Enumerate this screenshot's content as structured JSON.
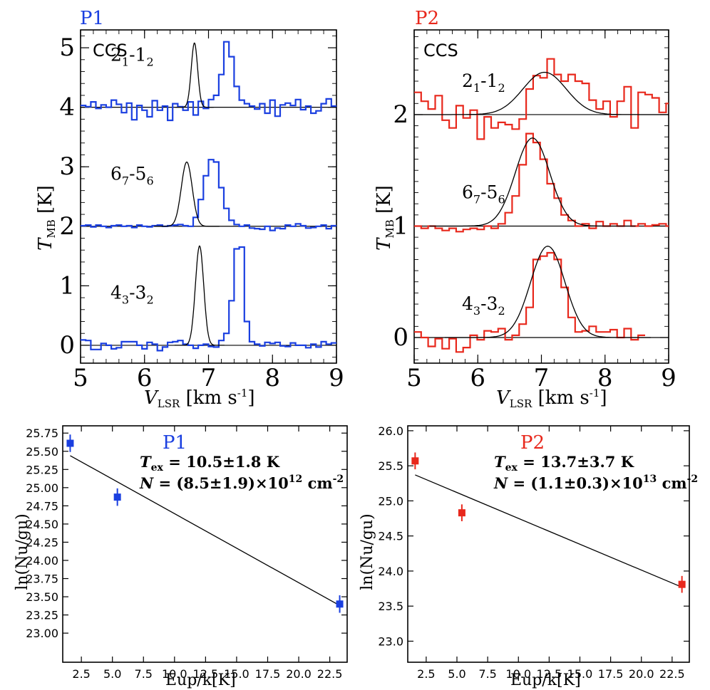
{
  "chart_data": [
    {
      "type": "line",
      "panel": "spectra",
      "title": "P1",
      "title_color": "#1a3fe0",
      "series_color": "#1a3fe0",
      "molecule": "CCS",
      "xlabel": "V_LSR [km s-1]",
      "ylabel": "T_MB [K]",
      "xlim": [
        5,
        9
      ],
      "ylim": [
        -0.3,
        5.3
      ],
      "x_ticks": [
        5,
        6,
        7,
        8,
        9
      ],
      "x_tick_labels": [
        "5",
        "6",
        "7",
        "8",
        "9"
      ],
      "y_ticks": [
        0,
        1,
        2,
        3,
        4,
        5
      ],
      "y_tick_labels": [
        "0",
        "1",
        "2",
        "3",
        "4",
        "5"
      ],
      "channel_width": 0.08,
      "transitions": [
        {
          "label": "2",
          "sub1": "1",
          "sep": "-1",
          "sub2": "2",
          "offset": 4,
          "amp": 1.08,
          "center": 6.78,
          "sigma": 0.05,
          "channels": [
            0.03,
            0.01,
            0.09,
            -0.02,
            0.04,
            0.0,
            0.12,
            0.05,
            -0.09,
            0.07,
            -0.21,
            0.03,
            -0.05,
            -0.16,
            0.11,
            -0.05,
            0.02,
            -0.22,
            0.06,
            0.01,
            -0.05,
            0.09,
            -0.13,
            0.1,
            -0.02,
            0.13,
            0.2,
            0.55,
            1.1,
            0.85,
            0.35,
            0.12,
            0.06,
            0.02,
            -0.03,
            0.06,
            -0.1,
            0.12,
            -0.15,
            0.04,
            0.07,
            0.03,
            0.13,
            -0.04,
            0.02,
            -0.1,
            -0.06,
            0.06,
            0.14,
            0.02,
            0.1,
            0.04,
            -0.03,
            0.15,
            0.06,
            0.02,
            -0.06,
            0.12,
            0.27,
            0.18,
            0.15,
            -0.02
          ]
        },
        {
          "label": "6",
          "sub1": "7",
          "sep": "-5",
          "sub2": "6",
          "offset": 2,
          "amp": 1.08,
          "center": 6.66,
          "sigma": 0.085,
          "channels": [
            0.01,
            0.02,
            -0.01,
            0.02,
            0.0,
            -0.02,
            0.01,
            0.02,
            0.0,
            0.01,
            -0.02,
            0.02,
            0.0,
            -0.01,
            0.01,
            0.02,
            0.0,
            0.01,
            0.02,
            0.03,
            0.01,
            0.0,
            0.15,
            0.45,
            0.85,
            1.12,
            1.08,
            0.65,
            0.3,
            0.1,
            0.03,
            0.0,
            0.02,
            -0.03,
            -0.04,
            -0.05,
            0.0,
            -0.07,
            -0.03,
            -0.04,
            0.02,
            0.0,
            0.04,
            0.01,
            -0.03,
            -0.02,
            0.0,
            0.02,
            -0.04,
            0.01,
            -0.03,
            -0.02,
            0.0,
            0.0,
            -0.02,
            0.01
          ]
        },
        {
          "label": "4",
          "sub1": "3",
          "sep": "-3",
          "sub2": "2",
          "offset": 0,
          "amp": 1.67,
          "center": 6.86,
          "sigma": 0.065,
          "channels": [
            0.09,
            0.08,
            -0.07,
            -0.07,
            0.03,
            0.0,
            -0.06,
            -0.04,
            0.06,
            0.06,
            0.06,
            0.0,
            -0.06,
            0.05,
            0.02,
            -0.09,
            -0.03,
            0.05,
            0.06,
            0.08,
            0.02,
            0.0,
            -0.05,
            0.0,
            0.02,
            -0.02,
            -0.03,
            0.08,
            0.2,
            0.75,
            1.62,
            1.65,
            0.4,
            0.06,
            0.02,
            -0.01,
            0.05,
            0.03,
            0.05,
            -0.01,
            -0.02,
            0.04,
            0.0,
            0.0,
            -0.04,
            0.02,
            -0.03,
            0.06,
            0.02,
            0.04,
            0.06,
            0.02,
            0.0,
            0.0,
            0.0,
            0.0,
            0.0,
            0.0
          ]
        }
      ]
    },
    {
      "type": "line",
      "panel": "spectra",
      "title": "P2",
      "title_color": "#e8281c",
      "series_color": "#e8281c",
      "molecule": "CCS",
      "xlabel": "V_LSR [km s-1]",
      "ylabel": "T_MB [K]",
      "xlim": [
        5,
        9
      ],
      "ylim": [
        -0.23,
        2.76
      ],
      "x_ticks": [
        5,
        6,
        7,
        8,
        9
      ],
      "x_tick_labels": [
        "5",
        "6",
        "7",
        "8",
        "9"
      ],
      "y_ticks": [
        0,
        1,
        2
      ],
      "y_tick_labels": [
        "0",
        "1",
        "2"
      ],
      "channel_width": 0.11,
      "transitions": [
        {
          "label": "2",
          "sub1": "1",
          "sep": "-1",
          "sub2": "2",
          "offset": 2,
          "amp": 0.38,
          "center": 7.05,
          "sigma": 0.34,
          "channels": [
            0.2,
            0.12,
            0.05,
            0.17,
            -0.05,
            -0.12,
            0.08,
            -0.03,
            0.04,
            -0.22,
            -0.02,
            -0.12,
            -0.07,
            -0.09,
            -0.13,
            -0.04,
            0.23,
            0.35,
            0.33,
            0.5,
            0.36,
            0.3,
            0.36,
            0.3,
            0.28,
            0.13,
            0.05,
            0.12,
            -0.02,
            0.12,
            0.25,
            -0.12,
            0.2,
            0.18,
            0.15,
            0.02,
            0.1,
            0.1,
            0.2,
            0.3,
            -0.1,
            -0.15,
            -0.07,
            0.1
          ]
        },
        {
          "label": "6",
          "sub1": "7",
          "sep": "-5",
          "sub2": "6",
          "offset": 1,
          "amp": 0.79,
          "center": 6.86,
          "sigma": 0.27,
          "channels": [
            0.0,
            -0.02,
            0.0,
            -0.02,
            -0.04,
            -0.02,
            -0.05,
            -0.03,
            -0.02,
            -0.03,
            0.0,
            -0.02,
            0.02,
            0.12,
            0.27,
            0.55,
            0.83,
            0.75,
            0.6,
            0.38,
            0.25,
            0.1,
            0.05,
            0.0,
            0.02,
            -0.02,
            0.04,
            0.0,
            0.02,
            0.0,
            0.05,
            0.0,
            0.02,
            0.0,
            0.01,
            0.02,
            0.0
          ]
        },
        {
          "label": "4",
          "sub1": "3",
          "sep": "-3",
          "sub2": "2",
          "offset": 0,
          "amp": 0.82,
          "center": 7.1,
          "sigma": 0.27,
          "channels": [
            0.05,
            0.0,
            -0.08,
            -0.01,
            -0.1,
            -0.01,
            -0.13,
            -0.09,
            0.02,
            -0.02,
            0.06,
            0.05,
            0.08,
            -0.02,
            0.02,
            0.12,
            0.27,
            0.7,
            0.73,
            0.76,
            0.7,
            0.45,
            0.18,
            0.05,
            0.06,
            0.1,
            0.05,
            0.05,
            0.07,
            0.0,
            0.08,
            -0.02,
            0.02
          ]
        }
      ]
    },
    {
      "type": "scatter",
      "panel": "rotation",
      "title": "P1",
      "title_color": "#1a3fe0",
      "marker_color": "#1a3fe0",
      "xlabel": "Eup/k[K]",
      "ylabel": "ln(Nu/gu)",
      "xlim": [
        1.0,
        23.9
      ],
      "ylim": [
        22.6,
        25.85
      ],
      "x_ticks": [
        2.5,
        5.0,
        7.5,
        10.0,
        12.5,
        15.0,
        17.5,
        20.0,
        22.5
      ],
      "x_tick_labels": [
        "2.5",
        "5.0",
        "7.5",
        "10.0",
        "12.5",
        "15.0",
        "17.5",
        "20.0",
        "22.5"
      ],
      "y_ticks": [
        23.0,
        23.25,
        23.5,
        23.75,
        24.0,
        24.25,
        24.5,
        24.75,
        25.0,
        25.25,
        25.5,
        25.75
      ],
      "y_tick_labels": [
        "23.00",
        "23.25",
        "23.50",
        "23.75",
        "24.00",
        "24.25",
        "24.50",
        "24.75",
        "25.00",
        "25.25",
        "25.50",
        "25.75"
      ],
      "points": [
        {
          "x": 1.6,
          "y": 25.61,
          "err": 0.12
        },
        {
          "x": 5.4,
          "y": 24.87,
          "err": 0.12
        },
        {
          "x": 23.3,
          "y": 23.4,
          "err": 0.12
        }
      ],
      "fit_line": [
        [
          1.6,
          25.44
        ],
        [
          23.3,
          23.38
        ]
      ],
      "ann_line1": {
        "sym": "T",
        "sub": "ex",
        "text": " = 10.5±1.8 K"
      },
      "ann_line2": {
        "sym": "N",
        "text": " = (8.5±1.9)×10",
        "sup": "12",
        "tail": " cm",
        "sup2": "-2"
      }
    },
    {
      "type": "scatter",
      "panel": "rotation",
      "title": "P2",
      "title_color": "#e8281c",
      "marker_color": "#e8281c",
      "xlabel": "Eup/k[K]",
      "ylabel": "ln(Nu/gu)",
      "xlim": [
        1.0,
        23.9
      ],
      "ylim": [
        22.7,
        26.07
      ],
      "x_ticks": [
        2.5,
        5.0,
        7.5,
        10.0,
        12.5,
        15.0,
        17.5,
        20.0,
        22.5
      ],
      "x_tick_labels": [
        "2.5",
        "5.0",
        "7.5",
        "10.0",
        "12.5",
        "15.0",
        "17.5",
        "20.0",
        "22.5"
      ],
      "y_ticks": [
        23.0,
        23.5,
        24.0,
        24.5,
        25.0,
        25.5,
        26.0
      ],
      "y_tick_labels": [
        "23.0",
        "23.5",
        "24.0",
        "24.5",
        "25.0",
        "25.5",
        "26.0"
      ],
      "points": [
        {
          "x": 1.6,
          "y": 25.57,
          "err": 0.12
        },
        {
          "x": 5.4,
          "y": 24.83,
          "err": 0.12
        },
        {
          "x": 23.3,
          "y": 23.81,
          "err": 0.12
        }
      ],
      "fit_line": [
        [
          1.6,
          25.37
        ],
        [
          23.3,
          23.77
        ]
      ],
      "ann_line1": {
        "sym": "T",
        "sub": "ex",
        "text": " = 13.7±3.7 K"
      },
      "ann_line2": {
        "sym": "N",
        "text": " = (1.1±0.3)×10",
        "sup": "13",
        "tail": " cm",
        "sup2": "-2"
      }
    }
  ]
}
